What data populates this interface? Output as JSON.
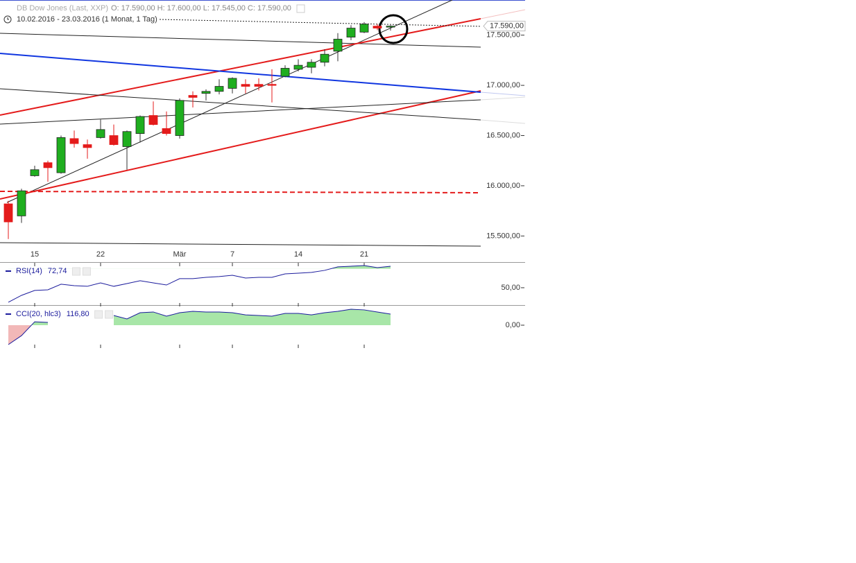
{
  "header": {
    "title": "DB Dow Jones (Last, XXP)",
    "ohlc": "O: 17.590,00   H: 17.600,00   L: 17.545,00   C: 17.590,00",
    "range": "10.02.2016 - 23.03.2016 (1 Monat, 1 Tag)"
  },
  "chart_data": [
    {
      "type": "candlestick",
      "categories": [
        null,
        null,
        "15",
        null,
        null,
        null,
        null,
        "22",
        null,
        null,
        null,
        null,
        null,
        "Mär",
        null,
        null,
        null,
        "7",
        null,
        null,
        null,
        null,
        "14",
        null,
        null,
        null,
        null,
        "21",
        null,
        null
      ],
      "open": [
        15820,
        15700,
        16100,
        16230,
        16130,
        16470,
        16410,
        16480,
        16500,
        16390,
        16520,
        16700,
        16570,
        16500,
        16900,
        16920,
        16940,
        16970,
        17010,
        17010,
        17010,
        17090,
        17160,
        17180,
        17230,
        17340,
        17480,
        17530,
        17590,
        17590
      ],
      "high": [
        15850,
        15970,
        16200,
        16250,
        16500,
        16550,
        16460,
        16660,
        16610,
        16550,
        16700,
        16840,
        16740,
        16870,
        16940,
        16960,
        17060,
        17080,
        17060,
        17070,
        17160,
        17200,
        17260,
        17260,
        17360,
        17520,
        17600,
        17630,
        17610,
        17600
      ],
      "low": [
        15470,
        15630,
        16090,
        16040,
        16120,
        16380,
        16270,
        16470,
        16400,
        16160,
        16430,
        16600,
        16500,
        16470,
        16780,
        16850,
        16910,
        16920,
        16920,
        16950,
        16830,
        17080,
        17140,
        17120,
        17190,
        17240,
        17450,
        17520,
        17550,
        17545
      ],
      "close": [
        15640,
        15950,
        16160,
        16180,
        16480,
        16420,
        16380,
        16560,
        16410,
        16540,
        16690,
        16610,
        16520,
        16850,
        16880,
        16940,
        16990,
        17070,
        16990,
        16990,
        17000,
        17170,
        17200,
        17230,
        17310,
        17460,
        17570,
        17610,
        17570,
        17590
      ],
      "up_color": "#1fae1f",
      "down_color": "#e41b1b",
      "ylim": [
        15240,
        17850
      ],
      "yticks": [
        {
          "value": 15500,
          "label": "15.500,00"
        },
        {
          "value": 16000,
          "label": "16.000,00"
        },
        {
          "value": 16500,
          "label": "16.500,00"
        },
        {
          "value": 17000,
          "label": "17.000,00"
        },
        {
          "value": 17500,
          "label": "17.500,00"
        }
      ],
      "last_price": {
        "value": 17590,
        "label": "17.590,00"
      }
    },
    {
      "type": "line",
      "series": [
        {
          "name": "RSI(14)",
          "color": "#1a1a9c",
          "last_label": "72,74",
          "values": [
            34.6,
            41.9,
            47.1,
            47.8,
            53.7,
            52.2,
            51.5,
            55.1,
            51.5,
            54.4,
            57.4,
            55.1,
            52.9,
            59.6,
            59.6,
            61,
            61.8,
            63.2,
            60.3,
            61,
            61,
            64.7,
            65.4,
            66.2,
            68.4,
            72.1,
            72.8,
            73.5,
            71.3,
            72.74
          ]
        }
      ],
      "fill_above": 70,
      "fill_above_color": "#a8e6a8",
      "ylim": [
        31.6,
        75.7
      ],
      "yticks": [
        {
          "value": 50,
          "label": "50,00"
        }
      ]
    },
    {
      "type": "line",
      "series": [
        {
          "name": "CCI(20, hlc3)",
          "color": "#1a1a9c",
          "last_label": "116,80",
          "values": [
            -204,
            -110,
            36,
            29,
            null,
            null,
            null,
            null,
            102,
            66,
            131,
            139,
            95,
            131,
            146,
            139,
            139,
            131,
            109,
            102,
            95,
            124,
            124,
            109,
            131,
            146,
            168,
            161,
            139,
            116.8
          ]
        }
      ],
      "fill_above": 0,
      "fill_above_color": "#a8e6a8",
      "fill_below": 0,
      "fill_below_color": "#f2b8b8",
      "ylim": [
        -226,
        197
      ],
      "yticks": [
        {
          "value": 0,
          "label": "0,00"
        }
      ]
    }
  ]
}
